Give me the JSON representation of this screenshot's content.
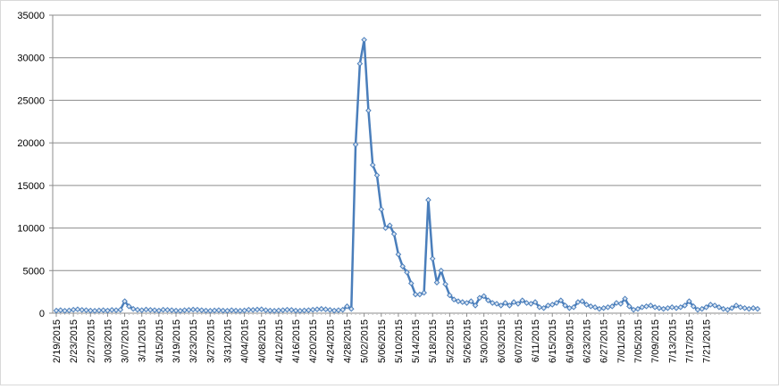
{
  "chart_data": {
    "type": "line",
    "title": "",
    "xlabel": "",
    "ylabel": "",
    "ylim": [
      0,
      35000
    ],
    "y_ticks": [
      0,
      5000,
      10000,
      15000,
      20000,
      25000,
      30000,
      35000
    ],
    "grid": "horizontal",
    "legend": "none",
    "line_color": "#4a7ebb",
    "marker": "diamond",
    "x_start_date": "2015-02-19",
    "x_tick_labels": [
      "2/19/2015",
      "2/23/2015",
      "2/27/2015",
      "3/03/2015",
      "3/07/2015",
      "3/11/2015",
      "3/15/2015",
      "3/19/2015",
      "3/23/2015",
      "3/27/2015",
      "3/31/2015",
      "4/04/2015",
      "4/08/2015",
      "4/12/2015",
      "4/16/2015",
      "4/20/2015",
      "4/24/2015",
      "4/28/2015",
      "5/02/2015",
      "5/06/2015",
      "5/10/2015",
      "5/14/2015",
      "5/18/2015",
      "5/22/2015",
      "5/26/2015",
      "5/30/2015",
      "6/03/2015",
      "6/07/2015",
      "6/11/2015",
      "6/15/2015",
      "6/19/2015",
      "6/23/2015",
      "6/27/2015",
      "7/01/2015",
      "7/05/2015",
      "7/09/2015",
      "7/13/2015",
      "7/17/2015",
      "7/21/2015"
    ],
    "values": [
      300,
      350,
      280,
      320,
      400,
      450,
      380,
      350,
      300,
      280,
      320,
      350,
      300,
      380,
      350,
      400,
      1400,
      800,
      500,
      400,
      350,
      420,
      380,
      350,
      300,
      400,
      380,
      350,
      300,
      280,
      350,
      380,
      420,
      400,
      350,
      300,
      280,
      320,
      350,
      300,
      280,
      350,
      300,
      280,
      320,
      400,
      380,
      420,
      450,
      350,
      300,
      280,
      320,
      350,
      400,
      380,
      300,
      280,
      320,
      350,
      400,
      450,
      500,
      450,
      380,
      300,
      350,
      400,
      800,
      500,
      19800,
      29300,
      32100,
      23800,
      17400,
      16200,
      12200,
      10000,
      10300,
      9300,
      6900,
      5500,
      4800,
      3500,
      2200,
      2200,
      2400,
      13300,
      6400,
      3600,
      5000,
      3400,
      2100,
      1600,
      1400,
      1300,
      1200,
      1400,
      900,
      1800,
      2000,
      1500,
      1200,
      1100,
      900,
      1200,
      900,
      1300,
      1100,
      1500,
      1200,
      1100,
      1300,
      700,
      600,
      900,
      1000,
      1200,
      1500,
      900,
      600,
      700,
      1300,
      1400,
      1000,
      800,
      700,
      500,
      600,
      700,
      800,
      1200,
      1100,
      1700,
      800,
      400,
      500,
      700,
      800,
      900,
      700,
      600,
      500,
      600,
      700,
      600,
      700,
      900,
      1400,
      800,
      400,
      500,
      700,
      1000,
      900,
      700,
      500,
      400,
      600,
      900,
      700,
      600,
      500,
      600,
      500
    ]
  }
}
